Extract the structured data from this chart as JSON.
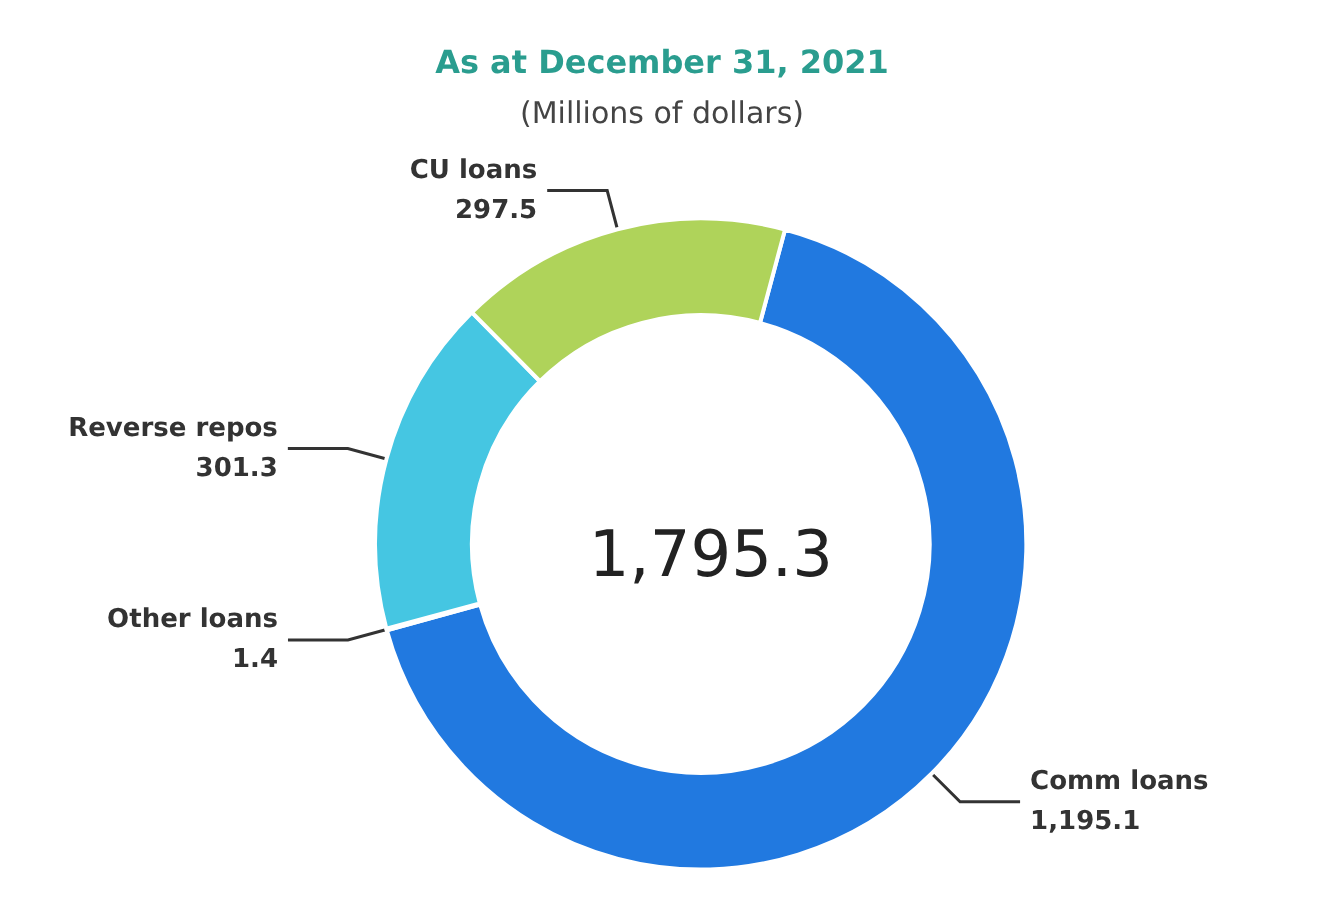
{
  "chart_data": {
    "type": "donut",
    "title": "As at December 31, 2021",
    "subtitle": "(Millions of dollars)",
    "categories": [
      "Comm loans",
      "Other loans",
      "Reverse repos",
      "CU loans"
    ],
    "values": [
      1195.1,
      1.4,
      301.3,
      297.5
    ],
    "value_labels": [
      "1,195.1",
      "1.4",
      "301.3",
      "297.5"
    ],
    "colors": [
      "#2179e0",
      "#1c64c4",
      "#45c6e2",
      "#afd35a"
    ],
    "annotations": [
      "1,795.3"
    ],
    "legend": false
  }
}
